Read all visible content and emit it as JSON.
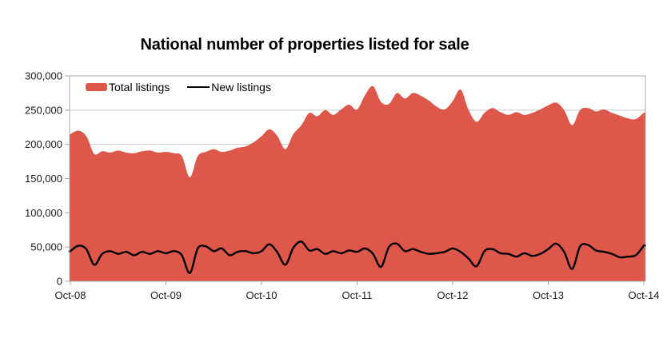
{
  "page": {
    "background": "#FFFFFF"
  },
  "colors": {
    "area_fill": "#DC4A3D",
    "line": "#000000",
    "grid": "#C9C9C9",
    "axis": "#A8A8A8",
    "tick_text": "#1A1A1A",
    "title_text": "#000000",
    "background": "#FFFFFF"
  },
  "legend": {
    "position": "top-left inside plot",
    "items": [
      {
        "label": "Total listings",
        "swatch": "red-area-swatch"
      },
      {
        "label": "New listings",
        "swatch": "black-line-swatch"
      }
    ]
  },
  "chart_data": {
    "type": "area",
    "title": "National number of properties listed for sale",
    "xlabel": "",
    "ylabel": "",
    "x_start": "Oct-08",
    "x_end": "Oct-14",
    "x_interval": "monthly",
    "x_tick_labels": [
      "Oct-08",
      "Oct-09",
      "Oct-10",
      "Oct-11",
      "Oct-12",
      "Oct-13",
      "Oct-14"
    ],
    "ylim": [
      0,
      300000
    ],
    "y_tick_interval": 50000,
    "y_tick_labels": [
      "0",
      "50,000",
      "100,000",
      "150,000",
      "200,000",
      "250,000",
      "300,000"
    ],
    "grid": "horizontal",
    "legend_position": "top-left-inside",
    "series": [
      {
        "name": "Total listings",
        "type": "area",
        "color": "#DC4A3D",
        "values": [
          215000,
          220000,
          212000,
          186000,
          190000,
          188000,
          191000,
          188000,
          187000,
          190000,
          191000,
          188000,
          189000,
          187000,
          183000,
          152000,
          183000,
          189000,
          193000,
          189000,
          191000,
          195000,
          197000,
          203000,
          212000,
          222000,
          212000,
          193000,
          215000,
          228000,
          246000,
          241000,
          250000,
          243000,
          251000,
          258000,
          251000,
          272000,
          285000,
          262000,
          259000,
          275000,
          267000,
          275000,
          271000,
          264000,
          255000,
          251000,
          263000,
          280000,
          250000,
          233000,
          246000,
          253000,
          247000,
          243000,
          247000,
          243000,
          246000,
          251000,
          257000,
          261000,
          250000,
          228000,
          250000,
          253000,
          248000,
          251000,
          246000,
          242000,
          238000,
          237000,
          246000
        ]
      },
      {
        "name": "New listings",
        "type": "line",
        "color": "#000000",
        "values": [
          44000,
          52000,
          47000,
          24000,
          40000,
          44000,
          40000,
          43000,
          38000,
          43000,
          40000,
          44000,
          41000,
          44000,
          38000,
          12000,
          48000,
          51000,
          44000,
          48000,
          38000,
          43000,
          44000,
          41000,
          44000,
          54000,
          42000,
          24000,
          49000,
          58000,
          45000,
          47000,
          40000,
          44000,
          41000,
          45000,
          43000,
          48000,
          40000,
          21000,
          50000,
          55000,
          44000,
          47000,
          43000,
          40000,
          41000,
          43000,
          48000,
          43000,
          33000,
          22000,
          44000,
          47000,
          41000,
          40000,
          36000,
          41000,
          37000,
          40000,
          47000,
          55000,
          43000,
          18000,
          51000,
          53000,
          45000,
          43000,
          40000,
          35000,
          36000,
          38000,
          52000
        ]
      }
    ]
  }
}
